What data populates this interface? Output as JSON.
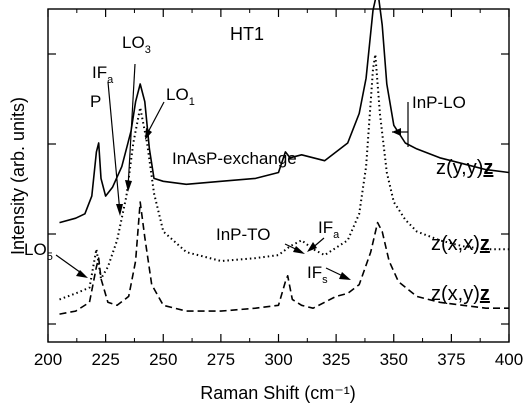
{
  "chart_data": {
    "type": "line",
    "title": "HT1",
    "xlabel": "Raman Shift (cm⁻¹)",
    "ylabel": "Intensity (arb. units)",
    "xlim": [
      200,
      400
    ],
    "ylim": [
      0,
      1
    ],
    "x_ticks": [
      "200",
      "225",
      "250",
      "275",
      "300",
      "325",
      "350",
      "375",
      "400"
    ],
    "y_tick_labels_shown": false,
    "grid": false,
    "series": [
      {
        "name": "z(y,y)z",
        "style": "solid",
        "color": "#000000",
        "x": [
          205,
          212,
          216,
          219,
          221,
          222,
          223,
          225,
          228,
          232,
          236,
          238,
          240,
          242,
          244,
          246,
          250,
          260,
          275,
          290,
          300,
          303,
          305,
          310,
          320,
          330,
          335,
          338,
          341,
          343,
          345,
          347,
          350,
          355,
          360,
          370,
          380,
          390,
          400
        ],
        "y": [
          0.33,
          0.345,
          0.36,
          0.42,
          0.57,
          0.6,
          0.48,
          0.42,
          0.45,
          0.52,
          0.64,
          0.74,
          0.8,
          0.74,
          0.58,
          0.48,
          0.47,
          0.46,
          0.47,
          0.48,
          0.5,
          0.57,
          0.55,
          0.56,
          0.54,
          0.6,
          0.7,
          0.82,
          1.05,
          1.12,
          1.0,
          0.8,
          0.66,
          0.6,
          0.58,
          0.55,
          0.53,
          0.51,
          0.5
        ]
      },
      {
        "name": "z(x,x)z",
        "style": "dotted",
        "color": "#000000",
        "x": [
          205,
          212,
          218,
          221,
          222,
          223,
          226,
          230,
          234,
          237,
          240,
          243,
          246,
          250,
          260,
          275,
          290,
          300,
          305,
          310,
          315,
          320,
          330,
          335,
          338,
          341,
          342,
          344,
          347,
          350,
          355,
          360,
          370,
          380,
          390,
          400
        ],
        "y": [
          0.07,
          0.09,
          0.11,
          0.24,
          0.19,
          0.14,
          0.18,
          0.27,
          0.42,
          0.6,
          0.72,
          0.6,
          0.43,
          0.3,
          0.23,
          0.2,
          0.21,
          0.22,
          0.25,
          0.27,
          0.24,
          0.22,
          0.27,
          0.36,
          0.52,
          0.85,
          0.9,
          0.7,
          0.5,
          0.4,
          0.34,
          0.3,
          0.27,
          0.25,
          0.24,
          0.24
        ]
      },
      {
        "name": "z(x,y)z",
        "style": "dashed",
        "color": "#000000",
        "x": [
          205,
          212,
          218,
          221,
          222,
          223,
          226,
          230,
          235,
          238,
          240,
          242,
          245,
          250,
          260,
          275,
          290,
          300,
          303,
          304,
          306,
          310,
          315,
          320,
          325,
          330,
          335,
          340,
          343,
          345,
          348,
          352,
          360,
          370,
          380,
          390,
          400
        ],
        "y": [
          0.02,
          0.03,
          0.06,
          0.18,
          0.21,
          0.14,
          0.06,
          0.05,
          0.08,
          0.2,
          0.4,
          0.28,
          0.12,
          0.05,
          0.03,
          0.03,
          0.04,
          0.05,
          0.13,
          0.15,
          0.07,
          0.05,
          0.04,
          0.06,
          0.08,
          0.09,
          0.12,
          0.23,
          0.33,
          0.3,
          0.2,
          0.13,
          0.08,
          0.06,
          0.05,
          0.04,
          0.04
        ]
      }
    ],
    "annotations": {
      "P": "P",
      "LO3": [
        "LO",
        "3"
      ],
      "IFa_top": [
        "IF",
        "a"
      ],
      "LO1": [
        "LO",
        "1"
      ],
      "InAsP_exchange": "InAsP-exchange",
      "InP_LO": "InP-LO",
      "InP_TO": "InP-TO",
      "IFa_mid": [
        "IF",
        "a"
      ],
      "IFs": [
        "IF",
        "s"
      ],
      "LO5": [
        "LO",
        "5"
      ]
    },
    "legend_labels": [
      {
        "prefix": "z(y,y)",
        "suffix": "z"
      },
      {
        "prefix": "z(x,x)",
        "suffix": "z"
      },
      {
        "prefix": "z(x,y)",
        "suffix": "z"
      }
    ]
  }
}
